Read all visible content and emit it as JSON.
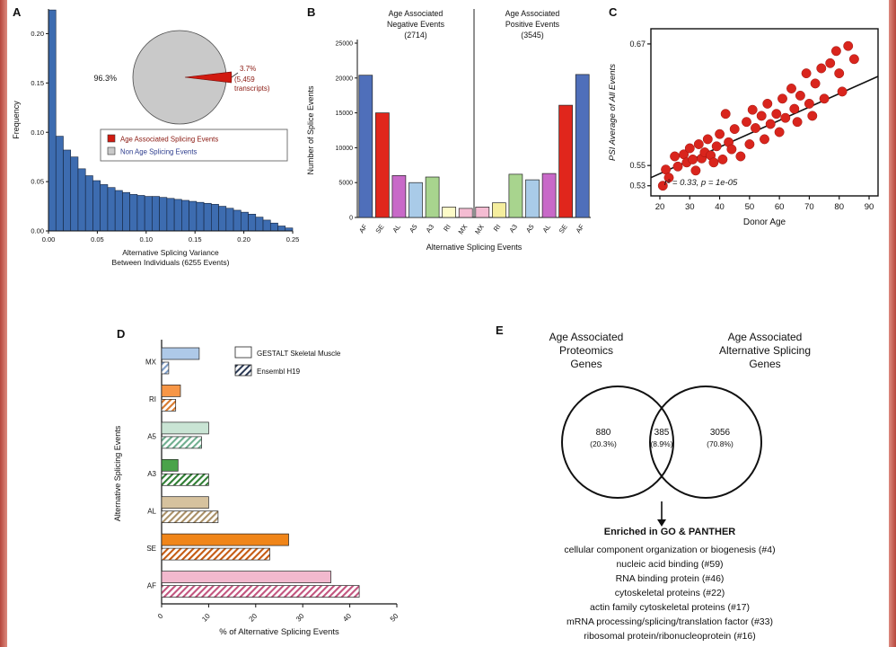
{
  "figure": {
    "background": "#ffffff",
    "edge_strip_color": "#bf4a40"
  },
  "panels": {
    "a": "A",
    "b": "B",
    "c": "C",
    "d": "D",
    "e": "E"
  },
  "chart_data": [
    {
      "id": "A",
      "type": "bar",
      "subtype": "histogram",
      "ylabel": "Frequency",
      "xlabel_lines": [
        "Alternative Splicing Variance",
        "Between Individuals (6255 Events)"
      ],
      "xlim": [
        0,
        0.25
      ],
      "ylim": [
        0,
        0.225
      ],
      "x_ticks": [
        "0.00",
        "0.05",
        "0.10",
        "0.15",
        "0.20",
        "0.25"
      ],
      "y_ticks": [
        "0.00",
        "0.05",
        "0.10",
        "0.15",
        "0.20"
      ],
      "bar_color": "#3d6cb0",
      "values": [
        0.224,
        0.096,
        0.082,
        0.075,
        0.063,
        0.056,
        0.051,
        0.047,
        0.044,
        0.041,
        0.039,
        0.037,
        0.036,
        0.035,
        0.035,
        0.034,
        0.033,
        0.032,
        0.031,
        0.03,
        0.029,
        0.028,
        0.027,
        0.025,
        0.023,
        0.021,
        0.019,
        0.017,
        0.014,
        0.011,
        0.008,
        0.005,
        0.003
      ],
      "pie": {
        "slice_values": [
          96.3,
          3.7
        ],
        "colors": [
          "#c9c9c9",
          "#d11a10"
        ],
        "labels": [
          "96.3%",
          "3.7%",
          "(5,459",
          "transcripts)"
        ]
      },
      "legend": [
        {
          "label": "Age Associated Splicing Events",
          "color": "#d11a10",
          "text_color": "#8b1a12"
        },
        {
          "label": "Non Age Splicing Events",
          "color": "#c9c9c9",
          "text_color": "#2f3f8f"
        }
      ]
    },
    {
      "id": "B",
      "type": "bar",
      "group_titles": [
        [
          "Age Associated",
          "Negative Events",
          "(2714)"
        ],
        [
          "Age Associated",
          "Positive Events",
          "(3545)"
        ]
      ],
      "categories": [
        "AF",
        "SE",
        "AL",
        "A5",
        "A3",
        "RI",
        "MX",
        "MX",
        "RI",
        "A3",
        "A5",
        "AL",
        "SE",
        "AF"
      ],
      "values": [
        20400,
        15000,
        6000,
        5000,
        5800,
        1500,
        1300,
        1500,
        2100,
        6200,
        5400,
        6300,
        16100,
        20500
      ],
      "colors": [
        "#4f6fba",
        "#e0261c",
        "#c869c8",
        "#a9cbe8",
        "#a8d48e",
        "#fdfbc8",
        "#f4bcd2",
        "#f4bcd2",
        "#f5ee9e",
        "#a8d48e",
        "#a9cbe8",
        "#c869c8",
        "#e0261c",
        "#4f6fba"
      ],
      "ylabel": "Number of Splice Events",
      "xlabel": "Alternative Splicing Events",
      "ylim": [
        0,
        25000
      ],
      "y_ticks": [
        0,
        5000,
        10000,
        15000,
        20000,
        25000
      ]
    },
    {
      "id": "C",
      "type": "scatter",
      "xlabel": "Donor Age",
      "ylabel": "PSI Average of All Events",
      "xlim": [
        17,
        93
      ],
      "ylim": [
        0.52,
        0.685
      ],
      "x_ticks": [
        20,
        30,
        40,
        50,
        60,
        70,
        80,
        90
      ],
      "y_ticks": [
        0.53,
        0.55,
        0.67
      ],
      "point_color": "#d9251d",
      "annotation": "r² = 0.33, p = 1e-05",
      "trend": [
        [
          17,
          0.538
        ],
        [
          93,
          0.638
        ]
      ],
      "points": [
        [
          21,
          0.53
        ],
        [
          22,
          0.546
        ],
        [
          23,
          0.538
        ],
        [
          25,
          0.559
        ],
        [
          26,
          0.549
        ],
        [
          28,
          0.561
        ],
        [
          29,
          0.553
        ],
        [
          30,
          0.567
        ],
        [
          31,
          0.556
        ],
        [
          32,
          0.545
        ],
        [
          33,
          0.571
        ],
        [
          34,
          0.557
        ],
        [
          35,
          0.563
        ],
        [
          36,
          0.576
        ],
        [
          37,
          0.56
        ],
        [
          38,
          0.553
        ],
        [
          39,
          0.569
        ],
        [
          40,
          0.581
        ],
        [
          41,
          0.556
        ],
        [
          42,
          0.601
        ],
        [
          43,
          0.573
        ],
        [
          44,
          0.566
        ],
        [
          45,
          0.586
        ],
        [
          47,
          0.559
        ],
        [
          49,
          0.593
        ],
        [
          50,
          0.571
        ],
        [
          51,
          0.605
        ],
        [
          52,
          0.587
        ],
        [
          54,
          0.599
        ],
        [
          55,
          0.576
        ],
        [
          56,
          0.611
        ],
        [
          57,
          0.591
        ],
        [
          59,
          0.601
        ],
        [
          60,
          0.583
        ],
        [
          61,
          0.616
        ],
        [
          62,
          0.597
        ],
        [
          64,
          0.626
        ],
        [
          65,
          0.606
        ],
        [
          66,
          0.593
        ],
        [
          67,
          0.619
        ],
        [
          69,
          0.641
        ],
        [
          70,
          0.611
        ],
        [
          71,
          0.599
        ],
        [
          72,
          0.631
        ],
        [
          74,
          0.646
        ],
        [
          75,
          0.616
        ],
        [
          77,
          0.651
        ],
        [
          79,
          0.663
        ],
        [
          80,
          0.641
        ],
        [
          81,
          0.623
        ],
        [
          83,
          0.668
        ],
        [
          85,
          0.655
        ]
      ]
    },
    {
      "id": "D",
      "type": "bar",
      "orientation": "horizontal",
      "categories": [
        "MX",
        "RI",
        "A5",
        "A3",
        "AL",
        "SE",
        "AF"
      ],
      "series": [
        {
          "name": "GESTALT Skeletal Muscle",
          "style": "solid",
          "values": [
            8,
            4,
            10,
            3.5,
            10,
            27,
            36
          ]
        },
        {
          "name": "Ensembl H19",
          "style": "hatched",
          "values": [
            1.5,
            3,
            8.5,
            10,
            12,
            23,
            42
          ]
        }
      ],
      "category_colors": [
        "#aec9e8",
        "#f79646",
        "#c9e4d4",
        "#4aa34a",
        "#d6c29e",
        "#f08519",
        "#f2b9ce"
      ],
      "hatch_colors": [
        "#7f9fc9",
        "#d97b2f",
        "#6fae8f",
        "#2e7d32",
        "#a98f66",
        "#c55a11",
        "#c2547e"
      ],
      "legend_hatch_color": "#2b3a55",
      "xlabel": "% of Alternative Splicing Events",
      "ylabel": "Alternative Splicing Events",
      "xlim": [
        0,
        50
      ],
      "x_ticks": [
        0,
        10,
        20,
        30,
        40,
        50
      ]
    },
    {
      "id": "E",
      "type": "venn",
      "title_left": [
        "Age Associated",
        "Proteomics",
        "Genes"
      ],
      "title_right": [
        "Age Associated",
        "Alternative Splicing",
        "Genes"
      ],
      "region_left": {
        "count": "880",
        "pct": "(20.3%)"
      },
      "region_overlap": {
        "count": "385",
        "pct": "(8.9%)"
      },
      "region_right": {
        "count": "3056",
        "pct": "(70.8%)"
      },
      "enriched_title": "Enriched in GO & PANTHER",
      "terms": [
        "cellular component organization or biogenesis (#4)",
        "nucleic acid binding (#59)",
        "RNA binding protein (#46)",
        "cytoskeletal proteins (#22)",
        "actin family cytoskeletal proteins (#17)",
        "mRNA processing/splicing/translation factor (#33)",
        "ribosomal protein/ribonucleoprotein (#16)"
      ]
    }
  ]
}
